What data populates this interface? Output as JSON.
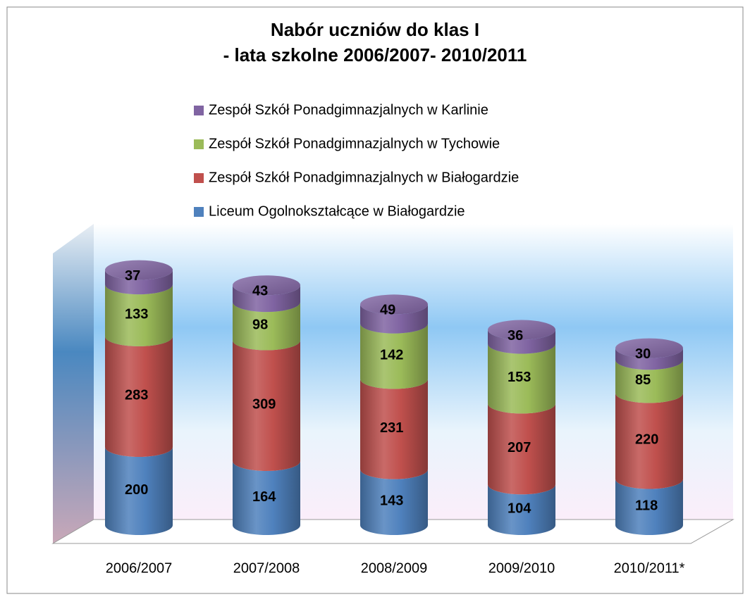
{
  "chart_data": {
    "type": "bar3d-cylinder-stacked",
    "title": "Nabór uczniów do klas I",
    "subtitle": "- lata szkolne 2006/2007- 2010/2011",
    "categories": [
      "2006/2007",
      "2007/2008",
      "2008/2009",
      "2009/2010",
      "2010/2011*"
    ],
    "series": [
      {
        "name": "Liceum Ogolnokształcące w Białogardzie",
        "color": "#4f81bd",
        "values": [
          200,
          164,
          143,
          104,
          118
        ]
      },
      {
        "name": "Zespół Szkół Ponadgimnazjalnych w Białogardzie",
        "color": "#c0504d",
        "values": [
          283,
          309,
          231,
          207,
          220
        ]
      },
      {
        "name": "Zespół Szkół Ponadgimnazjalnych w Tychowie",
        "color": "#9bbb59",
        "values": [
          133,
          98,
          142,
          153,
          85
        ]
      },
      {
        "name": "Zespół Szkół Ponadgimnazjalnych w Karlinie",
        "color": "#8064a2",
        "values": [
          37,
          43,
          49,
          36,
          30
        ]
      }
    ],
    "stacked": true,
    "legend": "top"
  }
}
